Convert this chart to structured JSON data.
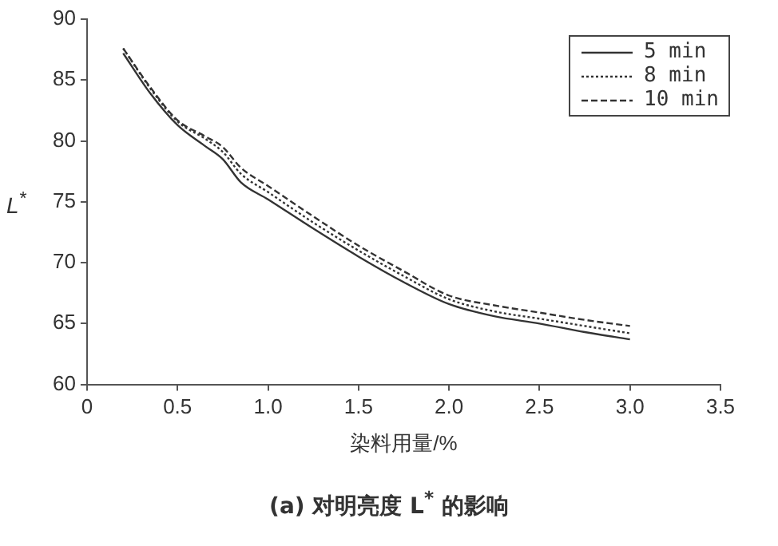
{
  "chart_data": {
    "type": "line",
    "title": "(a) 对明亮度 L$^{*}$ 的影响",
    "xlabel": "染料用量/%",
    "ylabel": "L$^{*}$",
    "x": [
      0.2,
      0.35,
      0.5,
      0.65,
      0.75,
      0.85,
      1.0,
      1.25,
      1.5,
      1.75,
      2.0,
      2.25,
      2.5,
      2.75,
      3.0
    ],
    "series": [
      {
        "name": "5 min",
        "color": "#333333",
        "line_style": "solid",
        "values": [
          87.2,
          83.9,
          81.3,
          79.6,
          78.5,
          76.6,
          75.2,
          72.8,
          70.5,
          68.4,
          66.6,
          65.6,
          65.0,
          64.3,
          63.7
        ]
      },
      {
        "name": "8 min",
        "color": "#333333",
        "line_style": "dotted",
        "values": [
          87.6,
          84.3,
          81.6,
          80.2,
          79.1,
          77.3,
          75.8,
          73.3,
          71.0,
          68.9,
          67.0,
          66.0,
          65.4,
          64.8,
          64.2
        ]
      },
      {
        "name": "10 min",
        "color": "#333333",
        "line_style": "dashed",
        "values": [
          87.6,
          84.4,
          81.7,
          80.4,
          79.5,
          77.8,
          76.3,
          73.8,
          71.4,
          69.3,
          67.3,
          66.5,
          65.9,
          65.3,
          64.8
        ]
      }
    ],
    "xlim": [
      0,
      3.5
    ],
    "xticks": [
      {
        "value": 0,
        "label": "0"
      },
      {
        "value": 0.5,
        "label": "0.5"
      },
      {
        "value": 1,
        "label": "1.0"
      },
      {
        "value": 1.5,
        "label": "1.5"
      },
      {
        "value": 2,
        "label": "2.0"
      },
      {
        "value": 2.5,
        "label": "2.5"
      },
      {
        "value": 3,
        "label": "3.0"
      },
      {
        "value": 3.5,
        "label": "3.5"
      }
    ],
    "ylim": [
      60,
      90
    ],
    "yticks": [
      60,
      65,
      70,
      75,
      80,
      85,
      90
    ],
    "grid": false,
    "legend": "top right",
    "marker": "none"
  }
}
